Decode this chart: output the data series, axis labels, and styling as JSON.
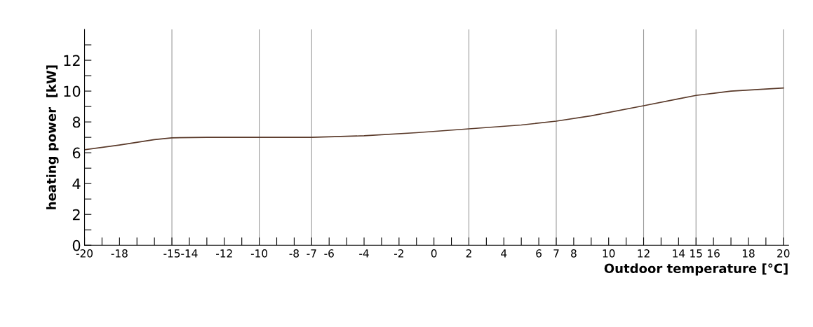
{
  "chart_data": {
    "type": "line",
    "xlabel": "Outdoor temperature [°C]",
    "ylabel": "heating power  [kW]",
    "x": [
      -20,
      -18,
      -16,
      -15,
      -13,
      -10,
      -7,
      -4,
      -1,
      2,
      5,
      7,
      9,
      12,
      14,
      15,
      17,
      20
    ],
    "series": [
      {
        "color": "#5a3a2a",
        "values": [
          6.2,
          6.5,
          6.85,
          6.97,
          7.0,
          7.0,
          7.0,
          7.1,
          7.3,
          7.55,
          7.8,
          8.05,
          8.4,
          9.05,
          9.5,
          9.72,
          10.0,
          10.2
        ]
      }
    ],
    "xlim": [
      -20,
      20.3
    ],
    "ylim": [
      0,
      14
    ],
    "xticks": [
      -20,
      {
        "value": -19,
        "label": null
      },
      {
        "value": -18,
        "label": "-18"
      },
      {
        "value": -17,
        "label": null
      },
      {
        "value": -16,
        "label": null
      },
      -15,
      {
        "value": -14,
        "label": "-14"
      },
      {
        "value": -13,
        "label": null
      },
      {
        "value": -12,
        "label": "-12"
      },
      {
        "value": -11,
        "label": null
      },
      -10,
      {
        "value": -9,
        "label": null
      },
      {
        "value": -8,
        "label": "-8"
      },
      -7,
      {
        "value": -6,
        "label": "-6"
      },
      {
        "value": -5,
        "label": null
      },
      {
        "value": -4,
        "label": "-4"
      },
      {
        "value": -3,
        "label": null
      },
      {
        "value": -2,
        "label": "-2"
      },
      {
        "value": -1,
        "label": null
      },
      0,
      {
        "value": 1,
        "label": null
      },
      2,
      {
        "value": 3,
        "label": null
      },
      {
        "value": 4,
        "label": "4"
      },
      {
        "value": 5,
        "label": null
      },
      {
        "value": 6,
        "label": "6"
      },
      7,
      {
        "value": 8,
        "label": "8"
      },
      {
        "value": 9,
        "label": null
      },
      {
        "value": 10,
        "label": "10"
      },
      {
        "value": 11,
        "label": null
      },
      12,
      {
        "value": 13,
        "label": null
      },
      {
        "value": 14,
        "label": "14"
      },
      15,
      {
        "value": 16,
        "label": "16"
      },
      {
        "value": 17,
        "label": null
      },
      {
        "value": 18,
        "label": "18"
      },
      {
        "value": 19,
        "label": null
      },
      20
    ],
    "yticks": [
      0,
      {
        "value": 1,
        "label": null
      },
      2,
      {
        "value": 3,
        "label": null
      },
      4,
      {
        "value": 5,
        "label": null
      },
      6,
      {
        "value": 7,
        "label": null
      },
      8,
      {
        "value": 9,
        "label": null
      },
      10,
      {
        "value": 11,
        "label": null
      },
      12,
      {
        "value": 13,
        "label": null
      }
    ],
    "ref_lines": [
      {
        "axis": "x",
        "value": -15,
        "color": "#999999"
      },
      {
        "axis": "x",
        "value": -10,
        "color": "#999999"
      },
      {
        "axis": "x",
        "value": -7,
        "color": "#999999"
      },
      {
        "axis": "x",
        "value": 2,
        "color": "#999999"
      },
      {
        "axis": "x",
        "value": 7,
        "color": "#999999"
      },
      {
        "axis": "x",
        "value": 12,
        "color": "#999999"
      },
      {
        "axis": "x",
        "value": 15,
        "color": "#999999"
      },
      {
        "axis": "x",
        "value": 20,
        "color": "#999999"
      }
    ],
    "marker": "none",
    "line_style": "solid",
    "grid": false,
    "legend": false
  }
}
